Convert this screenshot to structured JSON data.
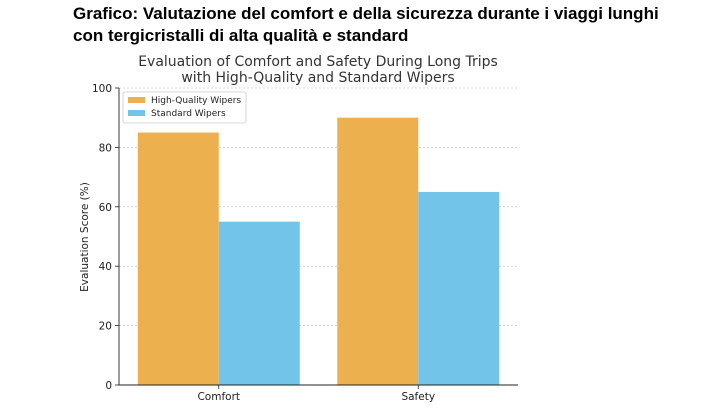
{
  "heading": {
    "line1": "Grafico: Valutazione del comfort e della sicurezza durante i viaggi lunghi",
    "line2": "con tergicristalli di alta qualità e standard"
  },
  "colors": {
    "high_quality": "#EDB04F",
    "standard": "#72C4E8"
  },
  "chart_data": {
    "type": "bar",
    "title": [
      "Evaluation of Comfort and Safety During Long Trips",
      "with High-Quality and Standard Wipers"
    ],
    "xlabel": "",
    "ylabel": "Evaluation Score (%)",
    "categories": [
      "Comfort",
      "Safety"
    ],
    "series": [
      {
        "name": "High-Quality Wipers",
        "values": [
          85,
          90
        ]
      },
      {
        "name": "Standard Wipers",
        "values": [
          55,
          65
        ]
      }
    ],
    "ylim": [
      0,
      100
    ],
    "yticks": [
      0,
      20,
      40,
      60,
      80,
      100
    ],
    "grid": true,
    "legend": "top-left"
  }
}
